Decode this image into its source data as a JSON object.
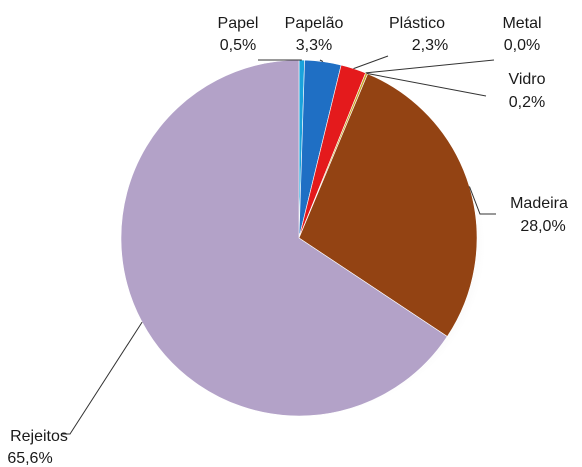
{
  "chart_data": {
    "type": "pie",
    "title": "",
    "slices": [
      {
        "name": "Papel",
        "value": 0.5,
        "label": "0,5%",
        "color": "#1aa3dc"
      },
      {
        "name": "Papelão",
        "value": 3.3,
        "label": "3,3%",
        "color": "#1f6fc4"
      },
      {
        "name": "Plástico",
        "value": 2.3,
        "label": "2,3%",
        "color": "#e41a1c"
      },
      {
        "name": "Metal",
        "value": 0.0,
        "label": "0,0%",
        "color": "#8a8a8a"
      },
      {
        "name": "Vidro",
        "value": 0.2,
        "label": "0,2%",
        "color": "#c9a227"
      },
      {
        "name": "Madeira",
        "value": 28.0,
        "label": "28,0%",
        "color": "#934313"
      },
      {
        "name": "Rejeitos",
        "value": 65.6,
        "label": "65,6%",
        "color": "#b3a2c8"
      }
    ],
    "legend": "none",
    "label_style": "callout"
  }
}
